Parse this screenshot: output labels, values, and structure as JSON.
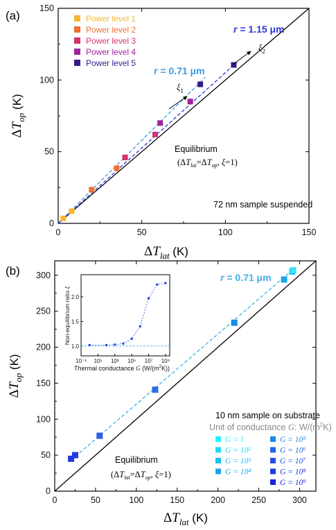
{
  "chart_data": [
    {
      "panel": "(a)",
      "type": "scatter",
      "xlabel": "ΔT_lat (K)",
      "ylabel": "ΔT_op (K)",
      "xlim": [
        0,
        150
      ],
      "ylim": [
        0,
        150
      ],
      "xticks": [
        "0",
        "50",
        "100",
        "150"
      ],
      "yticks": [
        "0",
        "50",
        "100",
        "150"
      ],
      "series": [
        {
          "name": "Power level 1",
          "color": "#F5B72B",
          "x": [
            3,
            8
          ],
          "y": [
            3.5,
            8.5
          ]
        },
        {
          "name": "Power level 2",
          "color": "#F07030",
          "x": [
            20,
            35
          ],
          "y": [
            23.5,
            38.5
          ]
        },
        {
          "name": "Power level 3",
          "color": "#D2336F",
          "x": [
            40,
            58
          ],
          "y": [
            46,
            62
          ]
        },
        {
          "name": "Power level 4",
          "color": "#A0239B",
          "x": [
            61,
            79
          ],
          "y": [
            70,
            85
          ]
        },
        {
          "name": "Power level 5",
          "color": "#3A1A8A",
          "x": [
            85,
            105
          ],
          "y": [
            97,
            110.5
          ]
        }
      ],
      "fit_lines": [
        {
          "label": "r = 0.71 μm",
          "color": "#3B9BE6",
          "x": [
            0,
            88
          ],
          "y": [
            0,
            102
          ]
        },
        {
          "label": "r = 1.15 μm",
          "color": "#2A33D6",
          "x": [
            0,
            107
          ],
          "y": [
            0,
            112.5
          ]
        }
      ],
      "equilibrium_line": {
        "x": [
          0,
          150
        ],
        "y": [
          0,
          150
        ]
      },
      "annotations": {
        "r1": "r = 0.71 μm",
        "r2": "r = 1.15 μm",
        "xi1": "ξ1",
        "xi2": "ξ2",
        "equilibrium": "Equilibrium",
        "equilibrium_sub": "(ΔT_lat=ΔT_op, ξ=1)",
        "sample": "72 nm sample suspended"
      }
    },
    {
      "panel": "(b)",
      "type": "scatter",
      "xlabel": "ΔT_lat (K)",
      "ylabel": "ΔT_op (K)",
      "xlim": [
        0,
        320
      ],
      "ylim": [
        0,
        320
      ],
      "xticks": [
        "0",
        "50",
        "100",
        "150",
        "200",
        "250",
        "300"
      ],
      "yticks": [
        "0",
        "50",
        "100",
        "150",
        "200",
        "250",
        "300"
      ],
      "points": [
        {
          "x": 20,
          "y": 45,
          "color": "#1E3BE0"
        },
        {
          "x": 25,
          "y": 50,
          "color": "#1E3BE0"
        },
        {
          "x": 55,
          "y": 77,
          "color": "#2A5FE5"
        },
        {
          "x": 123,
          "y": 141,
          "color": "#2A6FE8"
        },
        {
          "x": 220,
          "y": 234,
          "color": "#1A8BE3"
        },
        {
          "x": 281,
          "y": 294,
          "color": "#1CA6E8"
        },
        {
          "x": 291,
          "y": 305,
          "color": "#1FC9F0"
        },
        {
          "x": 292,
          "y": 307,
          "color": "#3BE3F7"
        }
      ],
      "fit_line": {
        "label": "r = 0.71 μm",
        "color": "#3BB2E6",
        "x": [
          20,
          292
        ],
        "y": [
          43,
          308
        ]
      },
      "equilibrium_line": {
        "x": [
          0,
          320
        ],
        "y": [
          0,
          320
        ]
      },
      "legend_title": "10 nm sample on substrate",
      "legend_subtitle": "Unit of conductance G: W/(m²K)",
      "legend": [
        {
          "label": "G = 1",
          "color": "#22F2FA"
        },
        {
          "label": "G = 10²",
          "color": "#1DD9F2"
        },
        {
          "label": "G = 10³",
          "color": "#1CC0EC"
        },
        {
          "label": "G = 10⁴",
          "color": "#1AA2E4"
        },
        {
          "label": "G = 10⁵",
          "color": "#1F86E6"
        },
        {
          "label": "G = 10⁶",
          "color": "#2266E8"
        },
        {
          "label": "G = 10⁷",
          "color": "#2150E6"
        },
        {
          "label": "G = 10⁸",
          "color": "#1E3BE0"
        },
        {
          "label": "G = 10⁹",
          "color": "#1A25D8"
        }
      ],
      "annotations": {
        "r1": "r = 0.71 μm",
        "equilibrium": "Equilibrium",
        "equilibrium_sub": "(ΔT_lat=ΔT_op, ξ=1)"
      },
      "inset": {
        "type": "line",
        "xlabel": "Thermal conductance G (W/(m²K))",
        "ylabel": "Non-equilibrium ratio ξ",
        "xscale": "log",
        "xlim_log10": [
          -1,
          9.5
        ],
        "ylim": [
          0.8,
          2.45
        ],
        "xticks": [
          "10⁻¹",
          "10¹",
          "10³",
          "10⁵",
          "10⁷",
          "10⁹"
        ],
        "yticks": [
          "1.0",
          "1.5",
          "2.0"
        ],
        "points_log10G": [
          0,
          2,
          3,
          4,
          5,
          6,
          7,
          8,
          9
        ],
        "points_xi": [
          1.02,
          1.02,
          1.03,
          1.05,
          1.15,
          1.4,
          1.97,
          2.25,
          2.28
        ],
        "reference_line_xi": 1.0
      }
    }
  ],
  "panel_labels": {
    "a": "(a)",
    "b": "(b)"
  }
}
